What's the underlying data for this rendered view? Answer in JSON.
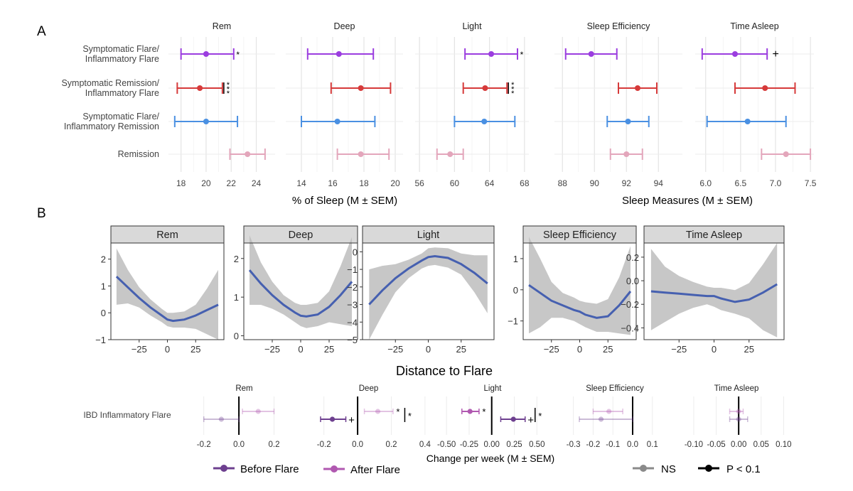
{
  "figure": {
    "panel_a_label": "A",
    "panel_b_label": "B",
    "colors": {
      "symptomatic_flare_inflammatory_flare": "#9b3ddf",
      "symptomatic_remission_inflammatory_flare": "#d63a3a",
      "symptomatic_flare_inflammatory_remission": "#4a90e2",
      "remission": "#e3a6bb",
      "smooth_line": "#4660b0",
      "band": "#bdbdbd",
      "strip": "#d9d9d9",
      "before_flare": "#6d3f8f",
      "after_flare": "#b058b0",
      "ns": "#8a8a8a",
      "p01": "#000000"
    }
  },
  "chart_data": [
    {
      "id": "A",
      "type": "forest",
      "rows": [
        "Symptomatic Flare/\nInflammatory Flare",
        "Symptomatic Remission/\nInflammatory Flare",
        "Symptomatic Flare/\nInflammatory Remission",
        "Remission"
      ],
      "xlabel_left": "% of Sleep (M ± SEM)",
      "xlabel_right": "Sleep Measures (M ± SEM)",
      "facets": [
        {
          "title": "Rem",
          "xlim": [
            17,
            25.5
          ],
          "ticks": [
            "18",
            "20",
            "22",
            "24"
          ],
          "tick_values": [
            18,
            20,
            22,
            24
          ],
          "points": [
            {
              "m": 20.0,
              "lo": 18.0,
              "hi": 22.2,
              "sig": "*"
            },
            {
              "m": 19.5,
              "lo": 17.7,
              "hi": 21.3,
              "sig": "***"
            },
            {
              "m": 20.0,
              "lo": 17.5,
              "hi": 22.5,
              "sig": ""
            },
            {
              "m": 23.3,
              "lo": 21.9,
              "hi": 24.7,
              "sig": ""
            }
          ]
        },
        {
          "title": "Deep",
          "xlim": [
            13,
            20.5
          ],
          "ticks": [
            "14",
            "16",
            "18",
            "20"
          ],
          "tick_values": [
            14,
            16,
            18,
            20
          ],
          "points": [
            {
              "m": 16.4,
              "lo": 14.4,
              "hi": 18.6,
              "sig": ""
            },
            {
              "m": 17.8,
              "lo": 15.9,
              "hi": 19.7,
              "sig": ""
            },
            {
              "m": 16.3,
              "lo": 14.0,
              "hi": 18.7,
              "sig": ""
            },
            {
              "m": 17.8,
              "lo": 16.3,
              "hi": 19.6,
              "sig": ""
            }
          ]
        },
        {
          "title": "Light",
          "xlim": [
            55.5,
            68.5
          ],
          "ticks": [
            "56",
            "60",
            "64",
            "68"
          ],
          "tick_values": [
            56,
            60,
            64,
            68
          ],
          "points": [
            {
              "m": 64.2,
              "lo": 61.2,
              "hi": 67.2,
              "sig": "*"
            },
            {
              "m": 63.5,
              "lo": 61.0,
              "hi": 66.0,
              "sig": "***"
            },
            {
              "m": 63.4,
              "lo": 60.0,
              "hi": 66.9,
              "sig": ""
            },
            {
              "m": 59.5,
              "lo": 58.0,
              "hi": 61.0,
              "sig": ""
            }
          ]
        },
        {
          "title": "Sleep Efficiency",
          "xlim": [
            87.5,
            95.5
          ],
          "ticks": [
            "88",
            "90",
            "92",
            "94"
          ],
          "tick_values": [
            88,
            90,
            92,
            94
          ],
          "points": [
            {
              "m": 89.8,
              "lo": 88.2,
              "hi": 91.4,
              "sig": ""
            },
            {
              "m": 92.7,
              "lo": 91.5,
              "hi": 93.9,
              "sig": ""
            },
            {
              "m": 92.1,
              "lo": 90.8,
              "hi": 93.4,
              "sig": ""
            },
            {
              "m": 92.0,
              "lo": 91.0,
              "hi": 93.0,
              "sig": ""
            }
          ]
        },
        {
          "title": "Time Asleep",
          "xlim": [
            5.85,
            7.55
          ],
          "ticks": [
            "6.0",
            "6.5",
            "7.0",
            "7.5"
          ],
          "tick_values": [
            6.0,
            6.5,
            7.0,
            7.5
          ],
          "points": [
            {
              "m": 6.42,
              "lo": 5.95,
              "hi": 6.88,
              "sig": "+"
            },
            {
              "m": 6.85,
              "lo": 6.42,
              "hi": 7.28,
              "sig": ""
            },
            {
              "m": 6.6,
              "lo": 6.02,
              "hi": 7.15,
              "sig": ""
            },
            {
              "m": 7.15,
              "lo": 6.8,
              "hi": 7.5,
              "sig": ""
            }
          ]
        }
      ]
    },
    {
      "id": "B-top",
      "type": "line",
      "xlabel": "Distance to Flare",
      "facets": [
        {
          "title": "Rem",
          "xlim": [
            -50,
            50
          ],
          "ylim": [
            -1,
            2.6
          ],
          "xticks": [
            -25,
            0,
            25
          ],
          "xtick_labels": [
            "−25",
            "0",
            "25"
          ],
          "yticks": [
            -1,
            0,
            1,
            2
          ],
          "ytick_labels": [
            "−1",
            "0",
            "1",
            "2"
          ],
          "x": [
            -45,
            -35,
            -25,
            -15,
            -5,
            0,
            5,
            15,
            25,
            35,
            45
          ],
          "y": [
            1.35,
            0.95,
            0.55,
            0.2,
            -0.1,
            -0.25,
            -0.3,
            -0.25,
            -0.1,
            0.1,
            0.3
          ],
          "lo": [
            0.3,
            0.35,
            0.2,
            -0.1,
            -0.35,
            -0.5,
            -0.55,
            -0.55,
            -0.6,
            -0.8,
            -1.0
          ],
          "hi": [
            2.4,
            1.6,
            0.95,
            0.5,
            0.15,
            0.0,
            0.0,
            0.05,
            0.3,
            0.9,
            1.6
          ]
        },
        {
          "title": "Deep",
          "xlim": [
            -50,
            50
          ],
          "ylim": [
            -0.1,
            2.4
          ],
          "xticks": [
            -25,
            0,
            25
          ],
          "xtick_labels": [
            "−25",
            "0",
            "25"
          ],
          "yticks": [
            0,
            1,
            2
          ],
          "ytick_labels": [
            "0",
            "1",
            "2"
          ],
          "x": [
            -45,
            -35,
            -25,
            -15,
            -5,
            0,
            5,
            15,
            25,
            35,
            45
          ],
          "y": [
            1.7,
            1.35,
            1.05,
            0.8,
            0.6,
            0.52,
            0.5,
            0.55,
            0.75,
            1.05,
            1.4
          ],
          "lo": [
            0.8,
            0.8,
            0.7,
            0.55,
            0.35,
            0.25,
            0.2,
            0.25,
            0.35,
            0.3,
            0.25
          ],
          "hi": [
            2.6,
            1.9,
            1.4,
            1.05,
            0.85,
            0.8,
            0.8,
            0.85,
            1.15,
            1.8,
            2.55
          ]
        },
        {
          "title": "Light",
          "xlim": [
            -50,
            50
          ],
          "ylim": [
            -5,
            0.5
          ],
          "xticks": [
            -25,
            0,
            25
          ],
          "xtick_labels": [
            "−25",
            "0",
            "25"
          ],
          "yticks": [
            -5,
            -4,
            -3,
            -2,
            -1,
            0
          ],
          "ytick_labels": [
            "−5",
            "−4",
            "−3",
            "−2",
            "−1",
            "0"
          ],
          "x": [
            -45,
            -35,
            -25,
            -15,
            -5,
            0,
            5,
            15,
            25,
            35,
            45
          ],
          "y": [
            -3.0,
            -2.2,
            -1.5,
            -0.95,
            -0.5,
            -0.3,
            -0.25,
            -0.35,
            -0.7,
            -1.2,
            -1.8
          ],
          "lo": [
            -5.0,
            -3.6,
            -2.3,
            -1.5,
            -0.95,
            -0.8,
            -0.75,
            -0.9,
            -1.3,
            -2.3,
            -3.5
          ],
          "hi": [
            -1.0,
            -0.8,
            -0.7,
            -0.45,
            -0.1,
            0.2,
            0.25,
            0.2,
            -0.1,
            -0.2,
            -0.2
          ]
        },
        {
          "title": "Sleep Efficiency",
          "xlim": [
            -50,
            50
          ],
          "ylim": [
            -1.6,
            1.5
          ],
          "xticks": [
            -25,
            0,
            25
          ],
          "xtick_labels": [
            "−25",
            "0",
            "25"
          ],
          "yticks": [
            -1,
            0,
            1
          ],
          "ytick_labels": [
            "−1",
            "0",
            "1"
          ],
          "x": [
            -45,
            -35,
            -25,
            -15,
            -5,
            0,
            5,
            15,
            25,
            35,
            45
          ],
          "y": [
            0.15,
            -0.1,
            -0.35,
            -0.5,
            -0.65,
            -0.7,
            -0.8,
            -0.9,
            -0.85,
            -0.5,
            -0.05
          ],
          "lo": [
            -1.4,
            -1.2,
            -0.9,
            -0.9,
            -1.0,
            -1.1,
            -1.2,
            -1.35,
            -1.35,
            -1.4,
            -1.45
          ],
          "hi": [
            1.7,
            1.0,
            0.25,
            -0.1,
            -0.25,
            -0.35,
            -0.4,
            -0.45,
            -0.3,
            0.4,
            1.4
          ]
        },
        {
          "title": "Time Asleep",
          "xlim": [
            -50,
            50
          ],
          "ylim": [
            -0.5,
            0.32
          ],
          "xticks": [
            -25,
            0,
            25
          ],
          "xtick_labels": [
            "−25",
            "0",
            "25"
          ],
          "yticks": [
            -0.4,
            -0.2,
            0.0,
            0.2
          ],
          "ytick_labels": [
            "−0.4",
            "−0.2",
            "0.0",
            "0.2"
          ],
          "x": [
            -45,
            -35,
            -25,
            -15,
            -5,
            0,
            5,
            15,
            25,
            35,
            45
          ],
          "y": [
            -0.09,
            -0.1,
            -0.11,
            -0.12,
            -0.13,
            -0.13,
            -0.15,
            -0.18,
            -0.16,
            -0.1,
            -0.03
          ],
          "lo": [
            -0.42,
            -0.35,
            -0.28,
            -0.23,
            -0.2,
            -0.22,
            -0.25,
            -0.28,
            -0.32,
            -0.42,
            -0.48
          ],
          "hi": [
            0.27,
            0.12,
            0.04,
            -0.01,
            -0.05,
            -0.06,
            -0.06,
            -0.08,
            -0.02,
            0.14,
            0.32
          ]
        }
      ]
    },
    {
      "id": "B-bottom",
      "type": "forest",
      "row_label": "IBD Inflammatory Flare",
      "xlabel": "Change per week (M ± SEM)",
      "legend": {
        "before": "Before Flare",
        "after": "After Flare",
        "ns": "NS",
        "p01": "P < 0.1"
      },
      "facets": [
        {
          "title": "Rem",
          "xlim": [
            -0.3,
            0.36
          ],
          "ticks": [
            "-0.2",
            "0.0",
            "0.2"
          ],
          "tick_values": [
            -0.2,
            0.0,
            0.2
          ],
          "after": {
            "m": 0.11,
            "lo": 0.02,
            "hi": 0.2,
            "sig": "",
            "p01": false
          },
          "before": {
            "m": -0.1,
            "lo": -0.2,
            "hi": 0.0,
            "sig": "",
            "p01": false
          }
        },
        {
          "title": "Deep",
          "xlim": [
            -0.3,
            0.43
          ],
          "ticks": [
            "-0.2",
            "0.0",
            "0.2",
            "0.4"
          ],
          "tick_values": [
            -0.2,
            0.0,
            0.2,
            0.4
          ],
          "after": {
            "m": 0.12,
            "lo": 0.04,
            "hi": 0.21,
            "sig": "*",
            "p01": false,
            "bar_x": 0.28
          },
          "before": {
            "m": -0.15,
            "lo": -0.22,
            "hi": -0.07,
            "sig": "+",
            "p01": true
          }
        },
        {
          "title": "Light",
          "xlim": [
            -0.58,
            0.6
          ],
          "ticks": [
            "-0.50",
            "-0.25",
            "0.00",
            "0.25",
            "0.50"
          ],
          "tick_values": [
            -0.5,
            -0.25,
            0.0,
            0.25,
            0.5
          ],
          "after": {
            "m": -0.24,
            "lo": -0.33,
            "hi": -0.14,
            "sig": "*",
            "p01": true
          },
          "before": {
            "m": 0.24,
            "lo": 0.1,
            "hi": 0.37,
            "sig": "+",
            "p01": true,
            "bar_x": 0.48,
            "sig2": "*"
          }
        },
        {
          "title": "Sleep Efficiency",
          "xlim": [
            -0.36,
            0.18
          ],
          "ticks": [
            "-0.3",
            "-0.2",
            "-0.1",
            "0.0",
            "0.1"
          ],
          "tick_values": [
            -0.3,
            -0.2,
            -0.1,
            0.0,
            0.1
          ],
          "after": {
            "m": -0.12,
            "lo": -0.2,
            "hi": -0.05,
            "sig": "",
            "p01": false
          },
          "before": {
            "m": -0.16,
            "lo": -0.27,
            "hi": 0.0,
            "sig": "",
            "p01": false
          }
        },
        {
          "title": "Time Asleep",
          "xlim": [
            -0.13,
            0.12
          ],
          "ticks": [
            "-0.10",
            "-0.05",
            "0.00",
            "0.05",
            "0.10"
          ],
          "tick_values": [
            -0.1,
            -0.05,
            0.0,
            0.05,
            0.1
          ],
          "after": {
            "m": 0.0,
            "lo": -0.02,
            "hi": 0.01,
            "sig": "",
            "p01": false
          },
          "before": {
            "m": 0.0,
            "lo": -0.02,
            "hi": 0.02,
            "sig": "",
            "p01": false
          }
        }
      ]
    }
  ]
}
